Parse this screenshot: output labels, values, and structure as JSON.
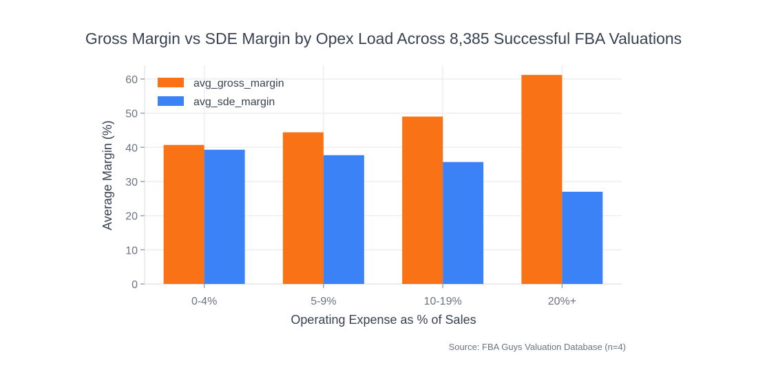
{
  "chart_data": {
    "type": "bar",
    "title": "Gross Margin vs SDE Margin by Opex Load Across 8,385 Successful FBA Valuations",
    "xlabel": "Operating Expense as % of Sales",
    "ylabel": "Average Margin (%)",
    "categories": [
      "0-4%",
      "5-9%",
      "10-19%",
      "20%+"
    ],
    "series": [
      {
        "name": "avg_gross_margin",
        "color": "#f97316",
        "values": [
          40.7,
          44.4,
          49.0,
          61.2
        ]
      },
      {
        "name": "avg_sde_margin",
        "color": "#3b82f6",
        "values": [
          39.3,
          37.7,
          35.7,
          27.0
        ]
      }
    ],
    "ylim": [
      0,
      64
    ],
    "yticks": [
      0,
      10,
      20,
      30,
      40,
      50,
      60
    ],
    "grid": true,
    "legend": "top-left",
    "source": "Source: FBA Guys Valuation Database (n=4)"
  }
}
